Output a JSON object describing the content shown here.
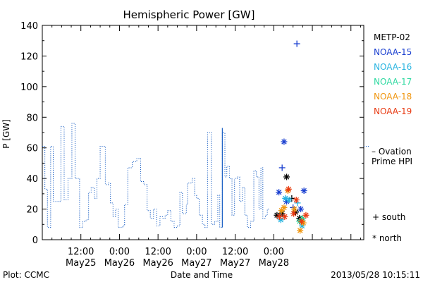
{
  "chart_data": {
    "type": "line",
    "title": "Hemispheric Power [GW]",
    "ylabel": "P [GW]",
    "xlabel": "Date and Time",
    "ylim": [
      0,
      140
    ],
    "y_ticks": [
      0,
      20,
      40,
      60,
      80,
      100,
      120,
      140
    ],
    "xlim_hours": [
      0,
      100
    ],
    "x_ticks": [
      {
        "hour": 12,
        "time": "12:00",
        "date": "May25"
      },
      {
        "hour": 24,
        "time": "0:00",
        "date": "May26"
      },
      {
        "hour": 36,
        "time": "12:00",
        "date": "May26"
      },
      {
        "hour": 48,
        "time": "0:00",
        "date": "May27"
      },
      {
        "hour": 60,
        "time": "12:00",
        "date": "May27"
      },
      {
        "hour": 72,
        "time": "0:00",
        "date": "May28"
      }
    ],
    "footer_left": "Plot: CCMC",
    "footer_right": "2013/05/28 10:15:11",
    "ovation_series": {
      "name": "Ovation Prime HPI",
      "label_line1": "– Ovation",
      "label_line2": "Prime HPI",
      "color": "#1a5fc4",
      "steps": [
        [
          0.0,
          61
        ],
        [
          0.8,
          33
        ],
        [
          1.6,
          8
        ],
        [
          2.6,
          61
        ],
        [
          3.4,
          25
        ],
        [
          5.8,
          74
        ],
        [
          6.8,
          26
        ],
        [
          8.0,
          40
        ],
        [
          9.2,
          76
        ],
        [
          10.2,
          40
        ],
        [
          11.6,
          8
        ],
        [
          12.6,
          12
        ],
        [
          13.6,
          13
        ],
        [
          14.4,
          31
        ],
        [
          15.2,
          34
        ],
        [
          16.2,
          27
        ],
        [
          17.0,
          40
        ],
        [
          17.6,
          40
        ],
        [
          18.0,
          61
        ],
        [
          19.6,
          36
        ],
        [
          20.6,
          37
        ],
        [
          21.2,
          24
        ],
        [
          22.0,
          15
        ],
        [
          22.8,
          20
        ],
        [
          23.6,
          8
        ],
        [
          25.0,
          9
        ],
        [
          25.6,
          23
        ],
        [
          26.6,
          47
        ],
        [
          28.0,
          51
        ],
        [
          29.4,
          53
        ],
        [
          30.6,
          38
        ],
        [
          31.6,
          36
        ],
        [
          32.6,
          19
        ],
        [
          33.6,
          14
        ],
        [
          34.6,
          20
        ],
        [
          35.6,
          9
        ],
        [
          36.6,
          15
        ],
        [
          37.4,
          14
        ],
        [
          38.2,
          16
        ],
        [
          39.0,
          19
        ],
        [
          40.0,
          12
        ],
        [
          41.0,
          8
        ],
        [
          42.0,
          9
        ],
        [
          42.8,
          31
        ],
        [
          43.6,
          17
        ],
        [
          44.8,
          23
        ],
        [
          45.2,
          37
        ],
        [
          46.6,
          40
        ],
        [
          47.4,
          29
        ],
        [
          48.0,
          27
        ],
        [
          48.8,
          16
        ],
        [
          49.8,
          10
        ],
        [
          50.6,
          8
        ],
        [
          51.4,
          70
        ],
        [
          52.2,
          70
        ],
        [
          52.6,
          10
        ],
        [
          53.6,
          12
        ],
        [
          54.6,
          29
        ],
        [
          55.2,
          8
        ],
        [
          56.0,
          70
        ],
        [
          56.8,
          41
        ],
        [
          57.4,
          48
        ],
        [
          58.2,
          40
        ],
        [
          59.0,
          16
        ],
        [
          59.8,
          40
        ],
        [
          60.6,
          41
        ],
        [
          61.4,
          25
        ],
        [
          62.2,
          34
        ],
        [
          63.0,
          16
        ],
        [
          63.8,
          8
        ],
        [
          64.8,
          12
        ],
        [
          65.8,
          45
        ],
        [
          66.6,
          41
        ],
        [
          67.4,
          20
        ],
        [
          68.0,
          47
        ],
        [
          68.6,
          14
        ],
        [
          69.4,
          16
        ],
        [
          70.0,
          20
        ]
      ],
      "end_hour": 70.6
    },
    "satellites": [
      {
        "name": "METP-02",
        "color": "#000000"
      },
      {
        "name": "NOAA-15",
        "color": "#1a3fd0"
      },
      {
        "name": "NOAA-16",
        "color": "#29b4e0"
      },
      {
        "name": "NOAA-17",
        "color": "#2ed9a0"
      },
      {
        "name": "NOAA-18",
        "color": "#f0960f"
      },
      {
        "name": "NOAA-19",
        "color": "#e83a12"
      }
    ],
    "marker_legend": {
      "south": "+ south",
      "north": "* north"
    },
    "points": [
      {
        "h": 73.0,
        "v": 16,
        "sat": 0,
        "m": "north"
      },
      {
        "h": 74.6,
        "v": 17,
        "sat": 0,
        "m": "north"
      },
      {
        "h": 76.0,
        "v": 41,
        "sat": 0,
        "m": "north"
      },
      {
        "h": 77.6,
        "v": 27,
        "sat": 0,
        "m": "south"
      },
      {
        "h": 78.8,
        "v": 18,
        "sat": 0,
        "m": "north"
      },
      {
        "h": 80.0,
        "v": 14,
        "sat": 0,
        "m": "north"
      },
      {
        "h": 73.6,
        "v": 31,
        "sat": 1,
        "m": "north"
      },
      {
        "h": 74.6,
        "v": 47,
        "sat": 1,
        "m": "south"
      },
      {
        "h": 75.2,
        "v": 64,
        "sat": 1,
        "m": "north"
      },
      {
        "h": 76.0,
        "v": 25,
        "sat": 1,
        "m": "north"
      },
      {
        "h": 78.0,
        "v": 21,
        "sat": 1,
        "m": "south"
      },
      {
        "h": 79.2,
        "v": 128,
        "sat": 1,
        "m": "south"
      },
      {
        "h": 80.4,
        "v": 20,
        "sat": 1,
        "m": "north"
      },
      {
        "h": 81.4,
        "v": 32,
        "sat": 1,
        "m": "north"
      },
      {
        "h": 74.2,
        "v": 13,
        "sat": 2,
        "m": "north"
      },
      {
        "h": 75.6,
        "v": 27,
        "sat": 2,
        "m": "north"
      },
      {
        "h": 76.8,
        "v": 26,
        "sat": 2,
        "m": "north"
      },
      {
        "h": 79.4,
        "v": 24,
        "sat": 2,
        "m": "south"
      },
      {
        "h": 80.8,
        "v": 9,
        "sat": 2,
        "m": "north"
      },
      {
        "h": 80.0,
        "v": 12,
        "sat": 3,
        "m": "north"
      },
      {
        "h": 81.0,
        "v": 14,
        "sat": 3,
        "m": "north"
      },
      {
        "h": 74.4,
        "v": 19,
        "sat": 4,
        "m": "north"
      },
      {
        "h": 75.2,
        "v": 21,
        "sat": 4,
        "m": "north"
      },
      {
        "h": 76.4,
        "v": 32,
        "sat": 4,
        "m": "north"
      },
      {
        "h": 78.4,
        "v": 20,
        "sat": 4,
        "m": "north"
      },
      {
        "h": 80.2,
        "v": 6,
        "sat": 4,
        "m": "north"
      },
      {
        "h": 81.2,
        "v": 11,
        "sat": 4,
        "m": "north"
      },
      {
        "h": 73.8,
        "v": 15,
        "sat": 5,
        "m": "north"
      },
      {
        "h": 75.4,
        "v": 15,
        "sat": 5,
        "m": "north"
      },
      {
        "h": 76.6,
        "v": 33,
        "sat": 5,
        "m": "north"
      },
      {
        "h": 78.2,
        "v": 17,
        "sat": 5,
        "m": "north"
      },
      {
        "h": 79.0,
        "v": 26,
        "sat": 5,
        "m": "north"
      },
      {
        "h": 80.6,
        "v": 12,
        "sat": 5,
        "m": "north"
      },
      {
        "h": 82.0,
        "v": 16,
        "sat": 5,
        "m": "north"
      }
    ]
  }
}
